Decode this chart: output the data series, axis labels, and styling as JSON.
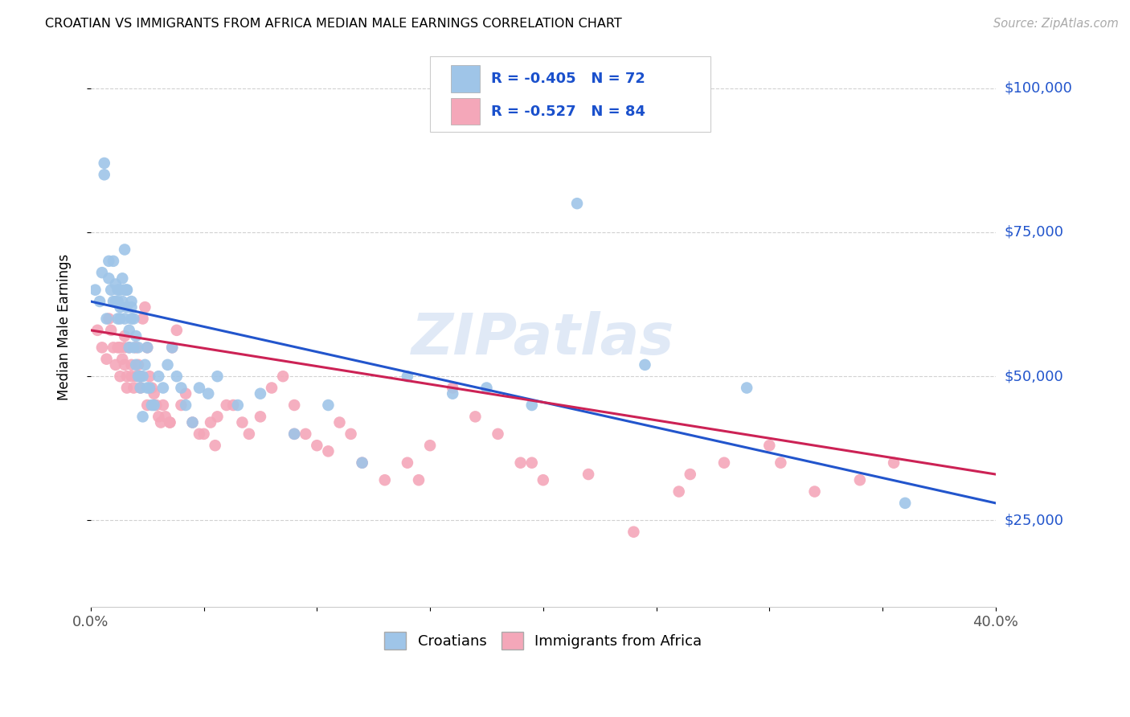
{
  "title": "CROATIAN VS IMMIGRANTS FROM AFRICA MEDIAN MALE EARNINGS CORRELATION CHART",
  "source": "Source: ZipAtlas.com",
  "ylabel": "Median Male Earnings",
  "yticks": [
    25000,
    50000,
    75000,
    100000
  ],
  "ytick_labels": [
    "$25,000",
    "$50,000",
    "$75,000",
    "$100,000"
  ],
  "xlim": [
    0.0,
    0.4
  ],
  "ylim": [
    10000,
    107000
  ],
  "croatian_color": "#9fc5e8",
  "africa_color": "#f4a7b9",
  "line_blue": "#2255cc",
  "line_pink": "#cc2255",
  "legend_text_color": "#1a50cc",
  "watermark": "ZIPatlas",
  "croatian_label": "Croatians",
  "africa_label": "Immigrants from Africa",
  "croatian_intercept": 63000,
  "croatian_slope": -87500,
  "africa_intercept": 58000,
  "africa_slope": -62500,
  "croatian_x": [
    0.002,
    0.004,
    0.005,
    0.006,
    0.006,
    0.007,
    0.008,
    0.008,
    0.009,
    0.01,
    0.01,
    0.011,
    0.011,
    0.012,
    0.012,
    0.012,
    0.013,
    0.013,
    0.013,
    0.014,
    0.014,
    0.015,
    0.015,
    0.015,
    0.016,
    0.016,
    0.016,
    0.017,
    0.017,
    0.018,
    0.018,
    0.018,
    0.019,
    0.019,
    0.02,
    0.02,
    0.021,
    0.021,
    0.022,
    0.022,
    0.023,
    0.023,
    0.024,
    0.025,
    0.025,
    0.026,
    0.027,
    0.028,
    0.03,
    0.032,
    0.034,
    0.036,
    0.038,
    0.04,
    0.042,
    0.045,
    0.048,
    0.052,
    0.056,
    0.065,
    0.075,
    0.09,
    0.105,
    0.12,
    0.14,
    0.16,
    0.175,
    0.195,
    0.215,
    0.245,
    0.29,
    0.36
  ],
  "croatian_y": [
    65000,
    63000,
    68000,
    85000,
    87000,
    60000,
    67000,
    70000,
    65000,
    63000,
    70000,
    63000,
    66000,
    60000,
    65000,
    63000,
    62000,
    65000,
    60000,
    67000,
    63000,
    60000,
    65000,
    72000,
    65000,
    65000,
    62000,
    55000,
    58000,
    60000,
    62000,
    63000,
    55000,
    60000,
    57000,
    52000,
    55000,
    50000,
    50000,
    48000,
    43000,
    50000,
    52000,
    55000,
    48000,
    48000,
    45000,
    45000,
    50000,
    48000,
    52000,
    55000,
    50000,
    48000,
    45000,
    42000,
    48000,
    47000,
    50000,
    45000,
    47000,
    40000,
    45000,
    35000,
    50000,
    47000,
    48000,
    45000,
    80000,
    52000,
    48000,
    28000
  ],
  "africa_x": [
    0.003,
    0.005,
    0.007,
    0.008,
    0.009,
    0.01,
    0.011,
    0.012,
    0.013,
    0.013,
    0.014,
    0.015,
    0.015,
    0.016,
    0.016,
    0.017,
    0.018,
    0.018,
    0.019,
    0.02,
    0.02,
    0.021,
    0.022,
    0.022,
    0.023,
    0.024,
    0.025,
    0.026,
    0.027,
    0.028,
    0.029,
    0.03,
    0.031,
    0.032,
    0.033,
    0.035,
    0.036,
    0.038,
    0.04,
    0.042,
    0.045,
    0.048,
    0.05,
    0.053,
    0.056,
    0.06,
    0.063,
    0.067,
    0.07,
    0.075,
    0.08,
    0.085,
    0.09,
    0.095,
    0.1,
    0.105,
    0.11,
    0.115,
    0.12,
    0.13,
    0.14,
    0.15,
    0.16,
    0.17,
    0.18,
    0.19,
    0.2,
    0.22,
    0.24,
    0.26,
    0.28,
    0.3,
    0.32,
    0.34,
    0.355,
    0.265,
    0.305,
    0.195,
    0.145,
    0.09,
    0.055,
    0.035,
    0.025,
    0.015
  ],
  "africa_y": [
    58000,
    55000,
    53000,
    60000,
    58000,
    55000,
    52000,
    55000,
    55000,
    50000,
    53000,
    55000,
    52000,
    50000,
    48000,
    55000,
    52000,
    50000,
    48000,
    50000,
    55000,
    52000,
    50000,
    48000,
    60000,
    62000,
    55000,
    50000,
    48000,
    47000,
    45000,
    43000,
    42000,
    45000,
    43000,
    42000,
    55000,
    58000,
    45000,
    47000,
    42000,
    40000,
    40000,
    42000,
    43000,
    45000,
    45000,
    42000,
    40000,
    43000,
    48000,
    50000,
    45000,
    40000,
    38000,
    37000,
    42000,
    40000,
    35000,
    32000,
    35000,
    38000,
    48000,
    43000,
    40000,
    35000,
    32000,
    33000,
    23000,
    30000,
    35000,
    38000,
    30000,
    32000,
    35000,
    33000,
    35000,
    35000,
    32000,
    40000,
    38000,
    42000,
    45000,
    57000
  ]
}
